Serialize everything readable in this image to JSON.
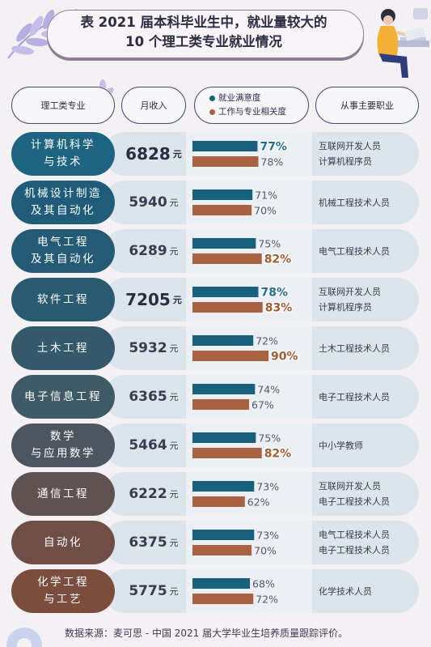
{
  "title": {
    "line1": "表 2021 届本科毕业生中，就业量较大的",
    "line2": "10 个理工类专业就业情况"
  },
  "headers": {
    "major": "理工类专业",
    "income": "月收入",
    "legend_satisfaction": "就业满意度",
    "legend_relevance": "工作与专业相关度",
    "occupation": "从事主要职业"
  },
  "colors": {
    "satisfaction": "#17617e",
    "relevance": "#a8623f",
    "highlight_text": "#1e6f96",
    "highlight_text_relevance": "#a45a34"
  },
  "chart_data": {
    "type": "table",
    "series": [
      {
        "name": "就业满意度",
        "values": [
          77,
          71,
          75,
          78,
          72,
          74,
          75,
          73,
          73,
          68
        ]
      },
      {
        "name": "工作与专业相关度",
        "values": [
          78,
          70,
          82,
          83,
          90,
          67,
          82,
          62,
          70,
          72
        ]
      }
    ],
    "max": 100
  },
  "source": "数据来源：麦可思 - 中国 2021 届大学毕业生培养质量跟踪评价。",
  "rows": [
    {
      "major": [
        "计算机科学",
        "与技术"
      ],
      "income": "6828",
      "unit": "元",
      "income_highlight": true,
      "sat": "77%",
      "sat_val": 77,
      "sat_hl": true,
      "rel": "78%",
      "rel_val": 78,
      "rel_hl": false,
      "jobs": [
        "互联网开发人员",
        "计算机程序员"
      ],
      "color": "#1d6482"
    },
    {
      "major": [
        "机械设计制造",
        "及其自动化"
      ],
      "income": "5940",
      "unit": "元",
      "income_highlight": false,
      "sat": "71%",
      "sat_val": 71,
      "sat_hl": false,
      "rel": "70%",
      "rel_val": 70,
      "rel_hl": false,
      "jobs": [
        "机械工程技术人员"
      ],
      "color": "#1f5c7a"
    },
    {
      "major": [
        "电气工程",
        "及其自动化"
      ],
      "income": "6289",
      "unit": "元",
      "income_highlight": false,
      "sat": "75%",
      "sat_val": 75,
      "sat_hl": false,
      "rel": "82%",
      "rel_val": 82,
      "rel_hl": true,
      "jobs": [
        "电气工程技术人员"
      ],
      "color": "#245a74"
    },
    {
      "major": [
        "软件工程"
      ],
      "income": "7205",
      "unit": "元",
      "income_highlight": true,
      "sat": "78%",
      "sat_val": 78,
      "sat_hl": true,
      "rel": "83%",
      "rel_val": 83,
      "rel_hl": true,
      "jobs": [
        "互联网开发人员",
        "计算机程序员"
      ],
      "color": "#2a5a70"
    },
    {
      "major": [
        "土木工程"
      ],
      "income": "5932",
      "unit": "元",
      "income_highlight": false,
      "sat": "72%",
      "sat_val": 72,
      "sat_hl": false,
      "rel": "90%",
      "rel_val": 90,
      "rel_hl": true,
      "jobs": [
        "土木工程技术人员"
      ],
      "color": "#33596b"
    },
    {
      "major": [
        "电子信息工程"
      ],
      "income": "6365",
      "unit": "元",
      "income_highlight": false,
      "sat": "74%",
      "sat_val": 74,
      "sat_hl": false,
      "rel": "67%",
      "rel_val": 67,
      "rel_hl": false,
      "jobs": [
        "电子工程技术人员"
      ],
      "color": "#3d5a66"
    },
    {
      "major": [
        "数学",
        "与应用数学"
      ],
      "income": "5464",
      "unit": "元",
      "income_highlight": false,
      "sat": "75%",
      "sat_val": 75,
      "sat_hl": false,
      "rel": "82%",
      "rel_val": 82,
      "rel_hl": true,
      "jobs": [
        "中小学教师"
      ],
      "color": "#4c5560"
    },
    {
      "major": [
        "通信工程"
      ],
      "income": "6222",
      "unit": "元",
      "income_highlight": false,
      "sat": "73%",
      "sat_val": 73,
      "sat_hl": false,
      "rel": "62%",
      "rel_val": 62,
      "rel_hl": false,
      "jobs": [
        "互联网开发人员",
        "电子工程技术人员"
      ],
      "color": "#5f5250"
    },
    {
      "major": [
        "自动化"
      ],
      "income": "6375",
      "unit": "元",
      "income_highlight": false,
      "sat": "73%",
      "sat_val": 73,
      "sat_hl": false,
      "rel": "70%",
      "rel_val": 70,
      "rel_hl": false,
      "jobs": [
        "电气工程技术人员",
        "电子工程技术人员"
      ],
      "color": "#6e4e45"
    },
    {
      "major": [
        "化学工程",
        "与工艺"
      ],
      "income": "5775",
      "unit": "元",
      "income_highlight": false,
      "sat": "68%",
      "sat_val": 68,
      "sat_hl": false,
      "rel": "72%",
      "rel_val": 72,
      "rel_hl": false,
      "jobs": [
        "化学技术人员"
      ],
      "color": "#7a4d3c"
    }
  ]
}
